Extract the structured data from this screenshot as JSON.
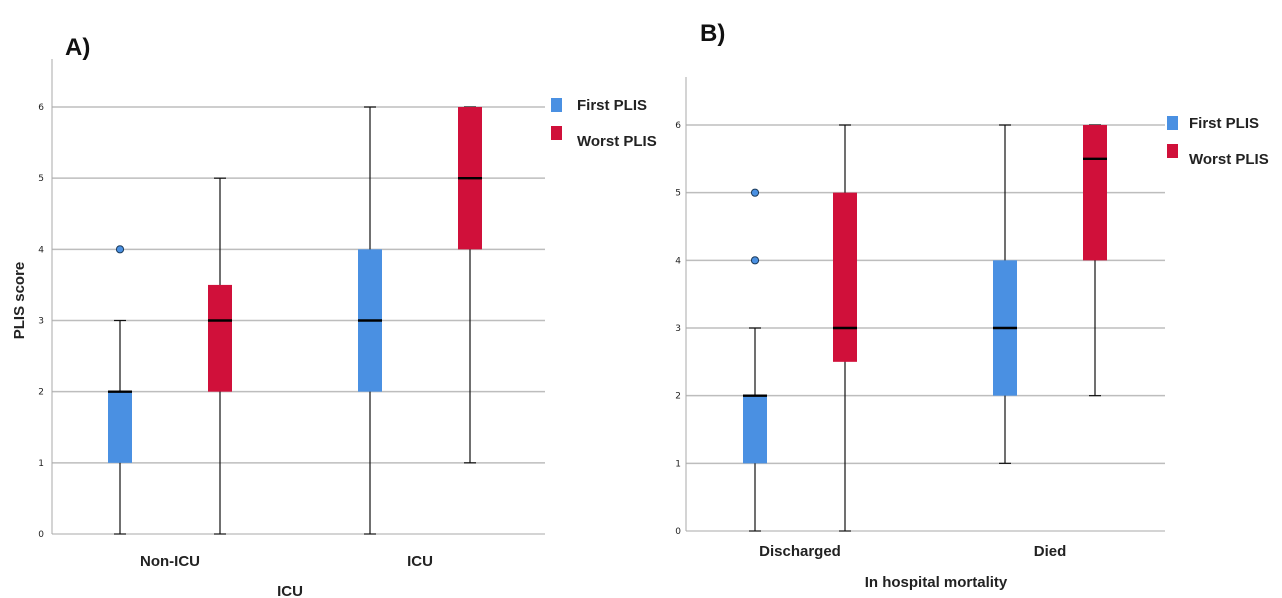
{
  "colors": {
    "first": "#4a90e2",
    "worst": "#d0103a",
    "grid": "#bdbdbd",
    "axis": "#aaaaaa"
  },
  "chart_data": [
    {
      "panel": "A)",
      "type": "box",
      "ylabel": "PLIS score",
      "xlabel": "ICU",
      "ylim": [
        0,
        6
      ],
      "yticks": [
        "0",
        "1",
        "2",
        "3",
        "4",
        "5",
        "6"
      ],
      "grid": true,
      "legend_position": "top-right",
      "categories": [
        "Non-ICU",
        "ICU"
      ],
      "series": [
        {
          "name": "First PLIS",
          "boxes": [
            {
              "whisker_low": 0,
              "q1": 1,
              "median": 2,
              "q3": 2,
              "whisker_high": 3,
              "outliers": [
                4
              ]
            },
            {
              "whisker_low": 0,
              "q1": 2,
              "median": 3,
              "q3": 4,
              "whisker_high": 6,
              "outliers": []
            }
          ]
        },
        {
          "name": "Worst PLIS",
          "boxes": [
            {
              "whisker_low": 0,
              "q1": 2,
              "median": 3,
              "q3": 3.5,
              "whisker_high": 5,
              "outliers": []
            },
            {
              "whisker_low": 1,
              "q1": 4,
              "median": 5,
              "q3": 6,
              "whisker_high": 6,
              "outliers": []
            }
          ]
        }
      ]
    },
    {
      "panel": "B)",
      "type": "box",
      "ylabel": "",
      "xlabel": "In hospital mortality",
      "ylim": [
        0,
        6
      ],
      "yticks": [
        "0",
        "1",
        "2",
        "3",
        "4",
        "5",
        "6"
      ],
      "grid": true,
      "legend_position": "top-right",
      "categories": [
        "Discharged",
        "Died"
      ],
      "series": [
        {
          "name": "First PLIS",
          "boxes": [
            {
              "whisker_low": 0,
              "q1": 1,
              "median": 2,
              "q3": 2,
              "whisker_high": 3,
              "outliers": [
                4,
                5
              ]
            },
            {
              "whisker_low": 1,
              "q1": 2,
              "median": 3,
              "q3": 4,
              "whisker_high": 6,
              "outliers": []
            }
          ]
        },
        {
          "name": "Worst PLIS",
          "boxes": [
            {
              "whisker_low": 0,
              "q1": 2.5,
              "median": 3,
              "q3": 5,
              "whisker_high": 6,
              "outliers": []
            },
            {
              "whisker_low": 2,
              "q1": 4,
              "median": 5.5,
              "q3": 6,
              "whisker_high": 6,
              "outliers": []
            }
          ]
        }
      ]
    }
  ]
}
